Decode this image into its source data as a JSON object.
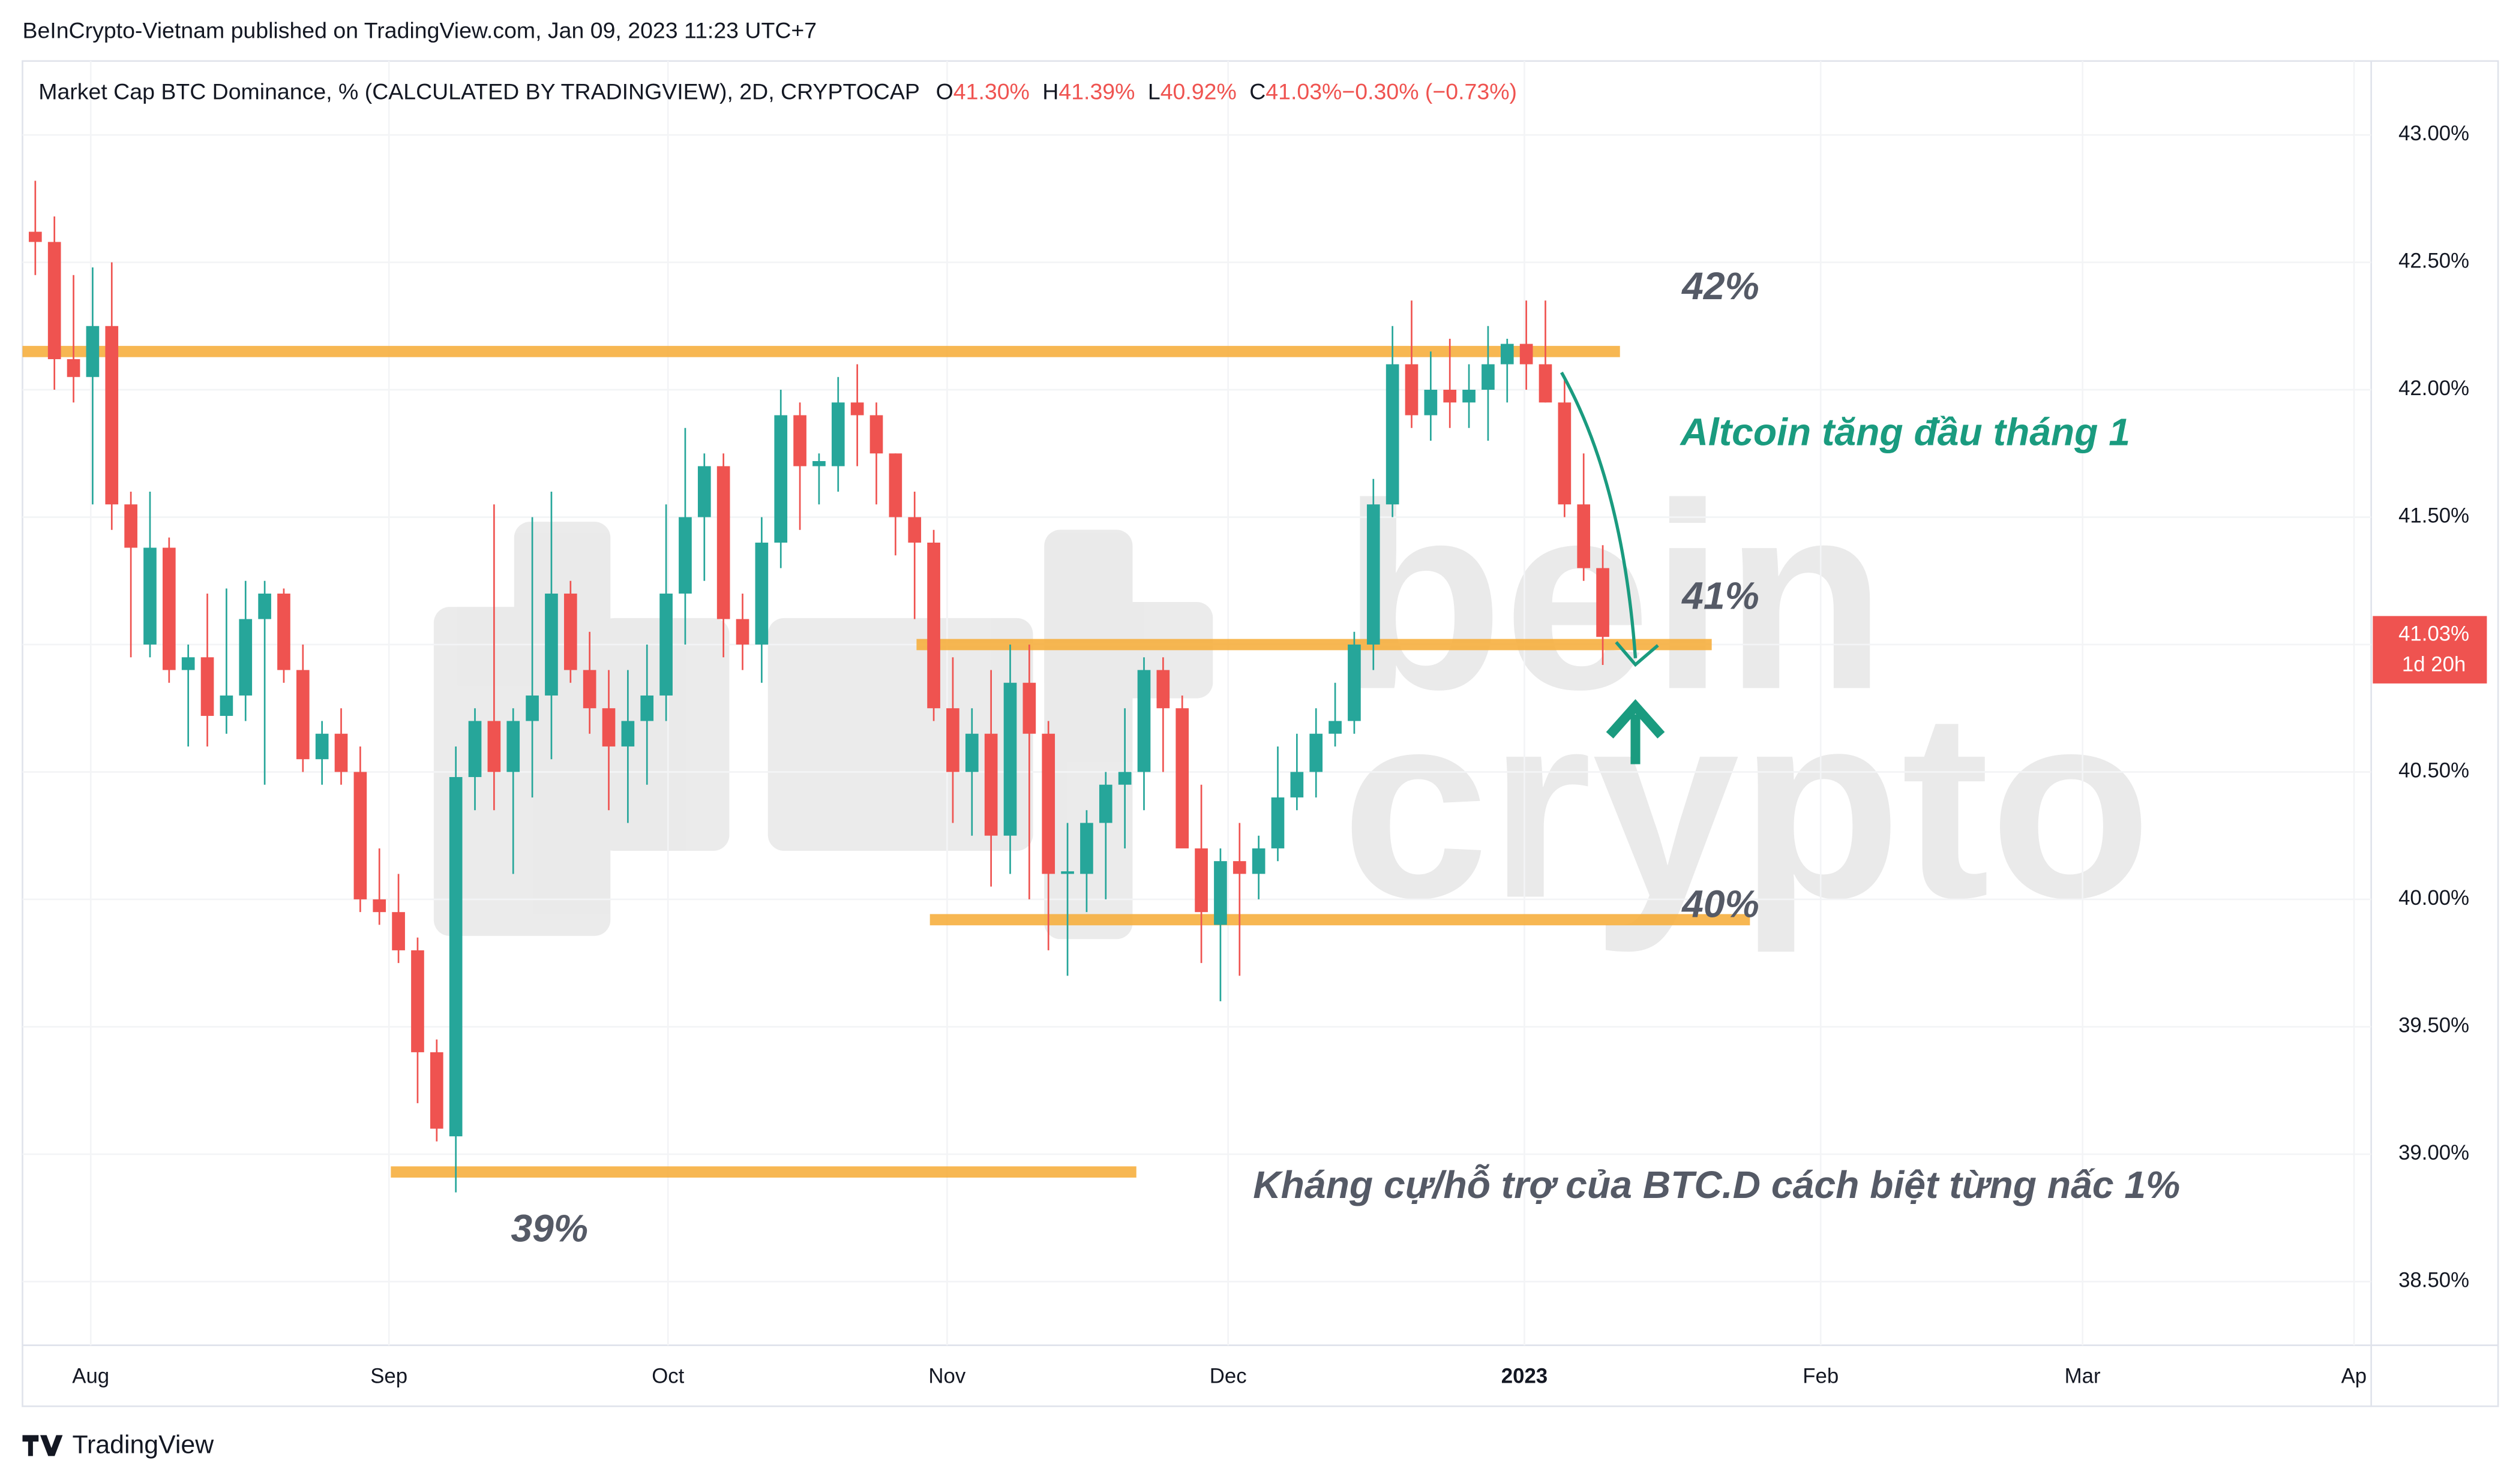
{
  "header": {
    "published": "BeInCrypto-Vietnam published on TradingView.com, Jan 09, 2023 11:23 UTC+7"
  },
  "footer": {
    "brand": "TradingView"
  },
  "chart_data": {
    "type": "candlestick",
    "title": "Market Cap BTC Dominance, % (CALCULATED BY TRADINGVIEW), 2D, CRYPTOCAP",
    "ohlc_legend": [
      {
        "key": "O",
        "text": "41.30%"
      },
      {
        "key": "H",
        "text": "41.39%"
      },
      {
        "key": "L",
        "text": "40.92%"
      },
      {
        "key": "C",
        "text": "41.03%"
      },
      {
        "key": "",
        "text": "−0.30% (−0.73%)"
      }
    ],
    "up_color": "#26a69a",
    "down_color": "#ef5350",
    "level_color": "#f7b040",
    "ylim": [
      38.25,
      43.29
    ],
    "yticks": [
      {
        "value": 38.5,
        "label": "38.50%"
      },
      {
        "value": 39,
        "label": "39.00%"
      },
      {
        "value": 39.5,
        "label": "39.50%"
      },
      {
        "value": 40,
        "label": "40.00%"
      },
      {
        "value": 40.5,
        "label": "40.50%"
      },
      {
        "value": 41,
        "label": "41.00%"
      },
      {
        "value": 41.5,
        "label": "41.50%"
      },
      {
        "value": 42,
        "label": "42.00%"
      },
      {
        "value": 42.5,
        "label": "42.50%"
      },
      {
        "value": 43,
        "label": "43.00%"
      }
    ],
    "xlim": [
      -0.67,
      122.2
    ],
    "xticks": [
      {
        "value": 2.9,
        "label": "Aug"
      },
      {
        "value": 18.5,
        "label": "Sep"
      },
      {
        "value": 33.1,
        "label": "Oct"
      },
      {
        "value": 47.7,
        "label": "Nov"
      },
      {
        "value": 62.4,
        "label": "Dec"
      },
      {
        "value": 77.9,
        "label": "2023"
      },
      {
        "value": 93.4,
        "label": "Feb"
      },
      {
        "value": 107.1,
        "label": "Mar"
      },
      {
        "value": 121.3,
        "label": "Ap"
      }
    ],
    "last_price": {
      "value": 41.03,
      "label": "41.03%",
      "countdown": "1d 20h"
    },
    "candles": [
      [
        42.62,
        42.82,
        42.45,
        42.58
      ],
      [
        42.58,
        42.68,
        42.0,
        42.12
      ],
      [
        42.12,
        42.45,
        41.95,
        42.05
      ],
      [
        42.05,
        42.48,
        41.55,
        42.25
      ],
      [
        42.25,
        42.5,
        41.45,
        41.55
      ],
      [
        41.55,
        41.6,
        40.95,
        41.38
      ],
      [
        41.0,
        41.6,
        40.95,
        41.38
      ],
      [
        41.38,
        41.42,
        40.85,
        40.9
      ],
      [
        40.9,
        41.0,
        40.6,
        40.95
      ],
      [
        40.95,
        41.2,
        40.6,
        40.72
      ],
      [
        40.72,
        41.22,
        40.65,
        40.8
      ],
      [
        40.8,
        41.25,
        40.7,
        41.1
      ],
      [
        41.1,
        41.25,
        40.45,
        41.2
      ],
      [
        41.2,
        41.22,
        40.85,
        40.9
      ],
      [
        40.9,
        41.0,
        40.5,
        40.55
      ],
      [
        40.55,
        40.7,
        40.45,
        40.65
      ],
      [
        40.65,
        40.75,
        40.45,
        40.5
      ],
      [
        40.5,
        40.6,
        39.95,
        40.0
      ],
      [
        40.0,
        40.2,
        39.9,
        39.95
      ],
      [
        39.95,
        40.1,
        39.75,
        39.8
      ],
      [
        39.8,
        39.85,
        39.2,
        39.4
      ],
      [
        39.4,
        39.45,
        39.05,
        39.1
      ],
      [
        39.07,
        40.6,
        38.85,
        40.48
      ],
      [
        40.48,
        40.75,
        40.35,
        40.7
      ],
      [
        40.7,
        41.55,
        40.35,
        40.5
      ],
      [
        40.5,
        40.75,
        40.1,
        40.7
      ],
      [
        40.7,
        41.5,
        40.4,
        40.8
      ],
      [
        40.8,
        41.6,
        40.55,
        41.2
      ],
      [
        41.2,
        41.25,
        40.85,
        40.9
      ],
      [
        40.9,
        41.05,
        40.65,
        40.75
      ],
      [
        40.75,
        40.9,
        40.35,
        40.6
      ],
      [
        40.6,
        40.9,
        40.3,
        40.7
      ],
      [
        40.7,
        41.0,
        40.45,
        40.8
      ],
      [
        40.8,
        41.55,
        40.7,
        41.2
      ],
      [
        41.2,
        41.85,
        41.0,
        41.5
      ],
      [
        41.5,
        41.75,
        41.25,
        41.7
      ],
      [
        41.7,
        41.75,
        40.95,
        41.1
      ],
      [
        41.1,
        41.2,
        40.9,
        41.0
      ],
      [
        41.0,
        41.5,
        40.85,
        41.4
      ],
      [
        41.4,
        42.0,
        41.3,
        41.9
      ],
      [
        41.9,
        41.95,
        41.45,
        41.7
      ],
      [
        41.7,
        41.75,
        41.55,
        41.72
      ],
      [
        41.7,
        42.05,
        41.6,
        41.95
      ],
      [
        41.95,
        42.1,
        41.7,
        41.9
      ],
      [
        41.9,
        41.95,
        41.55,
        41.75
      ],
      [
        41.75,
        41.75,
        41.35,
        41.5
      ],
      [
        41.5,
        41.6,
        41.1,
        41.4
      ],
      [
        41.4,
        41.45,
        40.7,
        40.75
      ],
      [
        40.75,
        40.95,
        40.3,
        40.5
      ],
      [
        40.5,
        40.75,
        40.25,
        40.65
      ],
      [
        40.65,
        40.9,
        40.05,
        40.25
      ],
      [
        40.25,
        41.0,
        40.1,
        40.85
      ],
      [
        40.85,
        41.0,
        40.0,
        40.65
      ],
      [
        40.65,
        40.7,
        39.8,
        40.1
      ],
      [
        40.1,
        40.3,
        39.7,
        40.11
      ],
      [
        40.1,
        40.35,
        39.95,
        40.3
      ],
      [
        40.3,
        40.5,
        40.0,
        40.45
      ],
      [
        40.45,
        40.75,
        40.2,
        40.5
      ],
      [
        40.5,
        40.95,
        40.35,
        40.9
      ],
      [
        40.9,
        40.95,
        40.5,
        40.75
      ],
      [
        40.75,
        40.8,
        40.25,
        40.2
      ],
      [
        40.2,
        40.45,
        39.75,
        39.95
      ],
      [
        39.9,
        40.2,
        39.6,
        40.15
      ],
      [
        40.15,
        40.3,
        39.7,
        40.1
      ],
      [
        40.1,
        40.25,
        40.0,
        40.2
      ],
      [
        40.2,
        40.6,
        40.15,
        40.4
      ],
      [
        40.4,
        40.65,
        40.35,
        40.5
      ],
      [
        40.5,
        40.75,
        40.4,
        40.65
      ],
      [
        40.65,
        40.85,
        40.6,
        40.7
      ],
      [
        40.7,
        41.05,
        40.65,
        41.0
      ],
      [
        41.0,
        41.65,
        40.9,
        41.55
      ],
      [
        41.55,
        42.25,
        41.5,
        42.1
      ],
      [
        42.1,
        42.35,
        41.85,
        41.9
      ],
      [
        41.9,
        42.15,
        41.8,
        42.0
      ],
      [
        42.0,
        42.2,
        41.85,
        41.95
      ],
      [
        41.95,
        42.1,
        41.85,
        42.0
      ],
      [
        42.0,
        42.25,
        41.8,
        42.1
      ],
      [
        42.1,
        42.2,
        41.95,
        42.18
      ],
      [
        42.18,
        42.35,
        42.0,
        42.1
      ],
      [
        42.1,
        42.35,
        41.95,
        41.95
      ],
      [
        41.95,
        42.05,
        41.5,
        41.55
      ],
      [
        41.55,
        41.75,
        41.25,
        41.3
      ],
      [
        41.3,
        41.39,
        40.92,
        41.03
      ]
    ],
    "levels": [
      {
        "y": 42.15,
        "x": [
          -0.67,
          82.9
        ]
      },
      {
        "y": 41.0,
        "x": [
          46.1,
          87.7
        ]
      },
      {
        "y": 39.92,
        "x": [
          46.8,
          89.7
        ]
      },
      {
        "y": 38.93,
        "x": [
          18.6,
          57.6
        ]
      }
    ],
    "annotations": {
      "l42": "42%",
      "l41": "41%",
      "l40": "40%",
      "l39": "39%",
      "altcoin": "Altcoin tăng đầu tháng 1",
      "summary": "Kháng cự/hỗ trợ của BTC.D cách biệt từng nấc 1%"
    },
    "watermark": [
      "bein",
      "crypto"
    ]
  }
}
